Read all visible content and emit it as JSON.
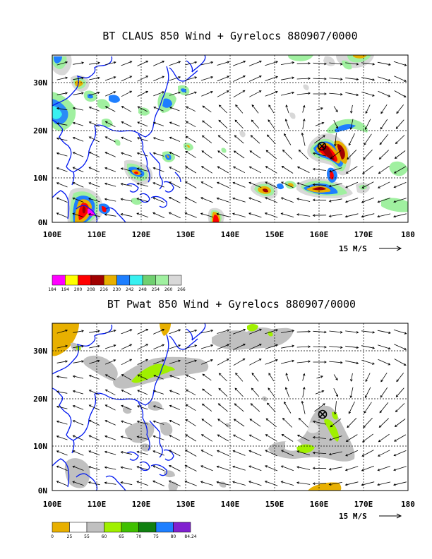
{
  "chart_data": [
    {
      "type": "heatmap",
      "title": "BT CLAUS 850 Wind + Gyrelocs 880907/0000",
      "x_ticks": [
        "100E",
        "110E",
        "120E",
        "130E",
        "140E",
        "150E",
        "160E",
        "170E",
        "180"
      ],
      "y_ticks": [
        "0N",
        "10N",
        "20N",
        "30N"
      ],
      "xlim": [
        100,
        180
      ],
      "ylim": [
        0,
        35
      ],
      "grid": true,
      "reference_vector_label": "15 M/S",
      "colorbar": {
        "levels": [
          "184",
          "194",
          "200",
          "208",
          "216",
          "230",
          "242",
          "248",
          "254",
          "260",
          "266"
        ],
        "colors": [
          "#ff00ff",
          "#ffff00",
          "#ff0000",
          "#a00000",
          "#e8b000",
          "#1e7fff",
          "#38f0f0",
          "#70d070",
          "#a0f0a0",
          "#d8d8d8"
        ]
      },
      "gyre_location": {
        "lon": 160.5,
        "lat": 16.5
      },
      "cloud_features": [
        {
          "lon": 161,
          "lat": 16,
          "value": 208
        },
        {
          "lon": 164.5,
          "lat": 14,
          "value": 208
        },
        {
          "lon": 163,
          "lat": 10,
          "value": 208
        },
        {
          "lon": 158,
          "lat": 7.5,
          "value": 208
        },
        {
          "lon": 152,
          "lat": 7,
          "value": 208
        },
        {
          "lon": 112,
          "lat": 4,
          "value": 208
        },
        {
          "lon": 119,
          "lat": 10,
          "value": 200
        },
        {
          "lon": 136.5,
          "lat": 1.5,
          "value": 216
        },
        {
          "lon": 108,
          "lat": 29,
          "value": 230
        },
        {
          "lon": 109,
          "lat": 1,
          "value": 208
        }
      ]
    },
    {
      "type": "heatmap",
      "title": "BT Pwat 850 Wind + Gyrelocs 880907/0000",
      "x_ticks": [
        "100E",
        "110E",
        "120E",
        "130E",
        "140E",
        "150E",
        "160E",
        "170E",
        "180"
      ],
      "y_ticks": [
        "0N",
        "10N",
        "20N",
        "30N"
      ],
      "xlim": [
        100,
        180
      ],
      "ylim": [
        0,
        35
      ],
      "grid": true,
      "reference_vector_label": "15 M/S",
      "colorbar": {
        "levels": [
          "0",
          "25",
          "55",
          "60",
          "65",
          "70",
          "75",
          "80",
          "84.24"
        ],
        "colors": [
          "#e8b000",
          "#ffffff",
          "#c0c0c0",
          "#a0f000",
          "#40c000",
          "#108010",
          "#1e7fff",
          "#8020d0"
        ]
      },
      "gyre_location": {
        "lon": 160.5,
        "lat": 16.5
      },
      "moisture_features": [
        {
          "lon": 158,
          "lat": 8.5,
          "value": 60
        },
        {
          "lon": 165,
          "lat": 11,
          "value": 60
        },
        {
          "lon": 121,
          "lat": 24.5,
          "value": 60
        },
        {
          "lon": 110,
          "lat": 29,
          "value": 60
        },
        {
          "lon": 144.5,
          "lat": 33.5,
          "value": 55
        },
        {
          "lon": 102,
          "lat": 33,
          "value": 25
        },
        {
          "lon": 126,
          "lat": 33.5,
          "value": 25
        },
        {
          "lon": 156.5,
          "lat": 0.5,
          "value": 25
        }
      ]
    }
  ]
}
